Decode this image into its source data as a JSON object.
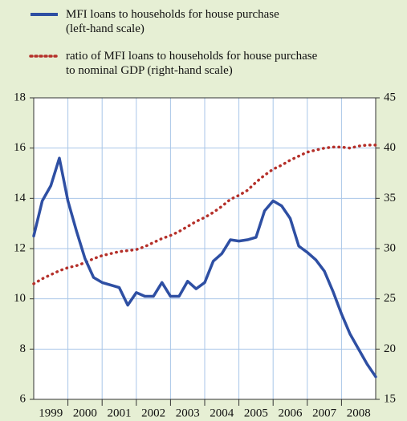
{
  "chart_data": {
    "type": "line",
    "x": [
      1999,
      1999.25,
      1999.5,
      1999.75,
      2000,
      2000.25,
      2000.5,
      2000.75,
      2001,
      2001.25,
      2001.5,
      2001.75,
      2002,
      2002.25,
      2002.5,
      2002.75,
      2003,
      2003.25,
      2003.5,
      2003.75,
      2004,
      2004.25,
      2004.5,
      2004.75,
      2005,
      2005.25,
      2005.5,
      2005.75,
      2006,
      2006.25,
      2006.5,
      2006.75,
      2007,
      2007.25,
      2007.5,
      2007.75,
      2008,
      2008.25,
      2008.5,
      2008.75,
      2009
    ],
    "series": [
      {
        "name": "MFI loans to households for house purchase\n(left-hand scale)",
        "color": "#2e4fa3",
        "style": "solid",
        "values": [
          12.5,
          13.9,
          14.5,
          15.6,
          13.9,
          12.7,
          11.6,
          10.85,
          10.65,
          10.55,
          10.45,
          9.75,
          10.25,
          10.1,
          10.1,
          10.65,
          10.1,
          10.1,
          10.7,
          10.4,
          10.65,
          11.5,
          11.8,
          12.35,
          12.3,
          12.35,
          12.45,
          13.5,
          13.9,
          13.7,
          13.2,
          12.1,
          11.85,
          11.55,
          11.1,
          10.3,
          9.4,
          8.6,
          8.0,
          7.4,
          6.9
        ]
      },
      {
        "name": "ratio of MFI loans to households for house purchase\nto nominal GDP (right-hand scale)",
        "color": "#b5302a",
        "style": "dotted",
        "axis": "y2",
        "values": [
          26.5,
          27.0,
          27.4,
          27.8,
          28.1,
          28.3,
          28.6,
          29.0,
          29.3,
          29.5,
          29.7,
          29.8,
          29.9,
          30.2,
          30.6,
          31.0,
          31.3,
          31.7,
          32.2,
          32.7,
          33.1,
          33.6,
          34.2,
          34.9,
          35.3,
          35.8,
          36.6,
          37.3,
          37.9,
          38.3,
          38.8,
          39.2,
          39.6,
          39.8,
          40.0,
          40.1,
          40.1,
          40.0,
          40.2,
          40.3,
          40.3
        ]
      }
    ],
    "xlim": [
      1999,
      2009
    ],
    "xticks": [
      {
        "value": 1999.5,
        "label": "1999"
      },
      {
        "value": 2000.5,
        "label": "2000"
      },
      {
        "value": 2001.5,
        "label": "2001"
      },
      {
        "value": 2002.5,
        "label": "2002"
      },
      {
        "value": 2003.5,
        "label": "2003"
      },
      {
        "value": 2004.5,
        "label": "2004"
      },
      {
        "value": 2005.5,
        "label": "2005"
      },
      {
        "value": 2006.5,
        "label": "2006"
      },
      {
        "value": 2007.5,
        "label": "2007"
      },
      {
        "value": 2008.5,
        "label": "2008"
      }
    ],
    "ylim": [
      6,
      18
    ],
    "yticks": [
      6,
      8,
      10,
      12,
      14,
      16,
      18
    ],
    "y2lim": [
      15,
      45
    ],
    "y2ticks": [
      15,
      20,
      25,
      30,
      35,
      40,
      45
    ],
    "grid": true
  }
}
